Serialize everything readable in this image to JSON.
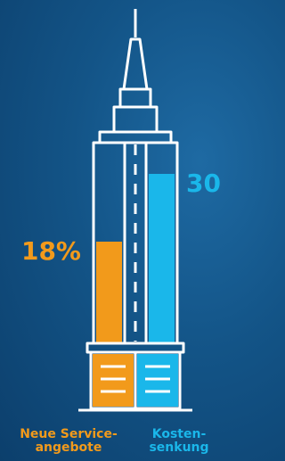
{
  "chart_data": {
    "type": "bar",
    "categories": [
      "Neue Service-\nangebote",
      "Kosten-\nsenkung"
    ],
    "values": [
      18,
      30
    ],
    "value_labels": [
      "18%",
      "30"
    ],
    "colors": [
      "#f29a1b",
      "#1ab7ea"
    ],
    "ylim": [
      0,
      60
    ]
  }
}
